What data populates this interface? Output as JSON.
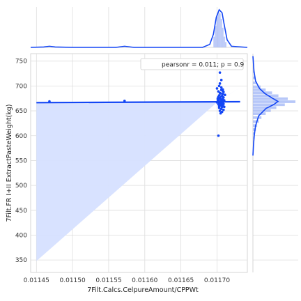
{
  "chart_data": {
    "type": "scatter",
    "title": "",
    "xlabel": "7Filt.Calcs.CelpureAmount/CPPWt",
    "ylabel": "7Filt.FR I+II ExtractPasteWeight(kg)",
    "xlim": [
      0.011442,
      0.011742
    ],
    "ylim": [
      325,
      765
    ],
    "x_ticks": [
      0.01145,
      0.0115,
      0.01155,
      0.0116,
      0.01165,
      0.0117
    ],
    "x_tick_labels": [
      "0.01145",
      "0.01150",
      "0.01155",
      "0.01160",
      "0.01165",
      "0.01170"
    ],
    "y_ticks": [
      350,
      400,
      450,
      500,
      550,
      600,
      650,
      700,
      750
    ],
    "y_tick_labels": [
      "350",
      "400",
      "450",
      "500",
      "550",
      "600",
      "650",
      "700",
      "750"
    ],
    "grid": true,
    "legend_text": "pearsonr = 0.011; p = 0.9",
    "legend_position": "top-right",
    "color": "#1346f5",
    "band_color": "#d6e0ff",
    "regression": {
      "x": [
        0.01145,
        0.011732
      ],
      "y": [
        666.5,
        668.3
      ]
    },
    "confidence_band": {
      "upper": [
        [
          0.01145,
          666.5
        ],
        [
          0.0117,
          667.5
        ],
        [
          0.011732,
          697
        ]
      ],
      "lower": [
        [
          0.01145,
          348
        ],
        [
          0.0117,
          667
        ],
        [
          0.011732,
          697
        ]
      ]
    },
    "points": [
      [
        0.011468,
        669
      ],
      [
        0.011572,
        670
      ],
      [
        0.011702,
        600
      ],
      [
        0.011704,
        727
      ],
      [
        0.011706,
        712
      ],
      [
        0.011704,
        705
      ],
      [
        0.011706,
        697
      ],
      [
        0.011708,
        693
      ],
      [
        0.011702,
        689
      ],
      [
        0.011704,
        686
      ],
      [
        0.011708,
        684
      ],
      [
        0.011703,
        681
      ],
      [
        0.011706,
        679
      ],
      [
        0.011709,
        677
      ],
      [
        0.011701,
        675
      ],
      [
        0.011704,
        674
      ],
      [
        0.011707,
        672
      ],
      [
        0.01171,
        671
      ],
      [
        0.011702,
        670
      ],
      [
        0.011705,
        669
      ],
      [
        0.011708,
        668
      ],
      [
        0.0117,
        667
      ],
      [
        0.011703,
        666
      ],
      [
        0.011706,
        665
      ],
      [
        0.011709,
        664
      ],
      [
        0.011702,
        663
      ],
      [
        0.011705,
        662
      ],
      [
        0.011708,
        661
      ],
      [
        0.011704,
        660
      ],
      [
        0.011707,
        658
      ],
      [
        0.011703,
        656
      ],
      [
        0.011706,
        654
      ],
      [
        0.011709,
        652
      ],
      [
        0.011704,
        650
      ],
      [
        0.011707,
        648
      ],
      [
        0.011705,
        645
      ],
      [
        0.011708,
        690
      ],
      [
        0.0117,
        695
      ],
      [
        0.011711,
        682
      ],
      [
        0.011701,
        672
      ],
      [
        0.01171,
        658
      ],
      [
        0.011703,
        700
      ],
      [
        0.011709,
        688
      ],
      [
        0.011706,
        673
      ],
      [
        0.011704,
        667
      ],
      [
        0.011707,
        663
      ],
      [
        0.011702,
        678
      ],
      [
        0.011705,
        685
      ],
      [
        0.011708,
        674
      ],
      [
        0.011703,
        659
      ],
      [
        0.011706,
        692
      ],
      [
        0.011709,
        669
      ],
      [
        0.011704,
        676
      ],
      [
        0.011707,
        680
      ]
    ],
    "x_marginal": {
      "type": "kde+histogram",
      "bars": [
        [
          0.011696,
          0.3
        ],
        [
          0.011698,
          0.6
        ],
        [
          0.0117,
          0.85
        ],
        [
          0.011702,
          1.0
        ],
        [
          0.011704,
          0.95
        ],
        [
          0.011706,
          0.8
        ],
        [
          0.011708,
          0.55
        ],
        [
          0.01171,
          0.3
        ],
        [
          0.011712,
          0.15
        ]
      ],
      "kde": [
        [
          0.011442,
          0.0
        ],
        [
          0.01146,
          0.01
        ],
        [
          0.011468,
          0.03
        ],
        [
          0.011476,
          0.01
        ],
        [
          0.0115,
          0.0
        ],
        [
          0.01156,
          0.0
        ],
        [
          0.011572,
          0.03
        ],
        [
          0.011585,
          0.0
        ],
        [
          0.01168,
          0.0
        ],
        [
          0.01169,
          0.08
        ],
        [
          0.011695,
          0.35
        ],
        [
          0.011699,
          0.8
        ],
        [
          0.011703,
          1.0
        ],
        [
          0.011707,
          0.92
        ],
        [
          0.01171,
          0.6
        ],
        [
          0.011714,
          0.2
        ],
        [
          0.01172,
          0.03
        ],
        [
          0.011742,
          0.0
        ]
      ]
    },
    "y_marginal": {
      "type": "kde+histogram",
      "bars": [
        [
          596,
          0.04
        ],
        [
          604,
          0.05
        ],
        [
          612,
          0.07
        ],
        [
          620,
          0.1
        ],
        [
          628,
          0.14
        ],
        [
          636,
          0.2
        ],
        [
          644,
          0.3
        ],
        [
          650,
          0.42
        ],
        [
          656,
          0.55
        ],
        [
          662,
          0.75
        ],
        [
          668,
          1.0
        ],
        [
          674,
          0.82
        ],
        [
          680,
          0.6
        ],
        [
          686,
          0.45
        ],
        [
          692,
          0.3
        ],
        [
          698,
          0.18
        ],
        [
          706,
          0.1
        ],
        [
          716,
          0.06
        ],
        [
          728,
          0.04
        ]
      ],
      "kde": [
        [
          560,
          0.0
        ],
        [
          580,
          0.02
        ],
        [
          600,
          0.05
        ],
        [
          620,
          0.1
        ],
        [
          640,
          0.22
        ],
        [
          655,
          0.5
        ],
        [
          663,
          0.8
        ],
        [
          669,
          0.95
        ],
        [
          675,
          0.75
        ],
        [
          685,
          0.45
        ],
        [
          695,
          0.25
        ],
        [
          710,
          0.1
        ],
        [
          730,
          0.04
        ],
        [
          760,
          0.0
        ]
      ]
    }
  }
}
